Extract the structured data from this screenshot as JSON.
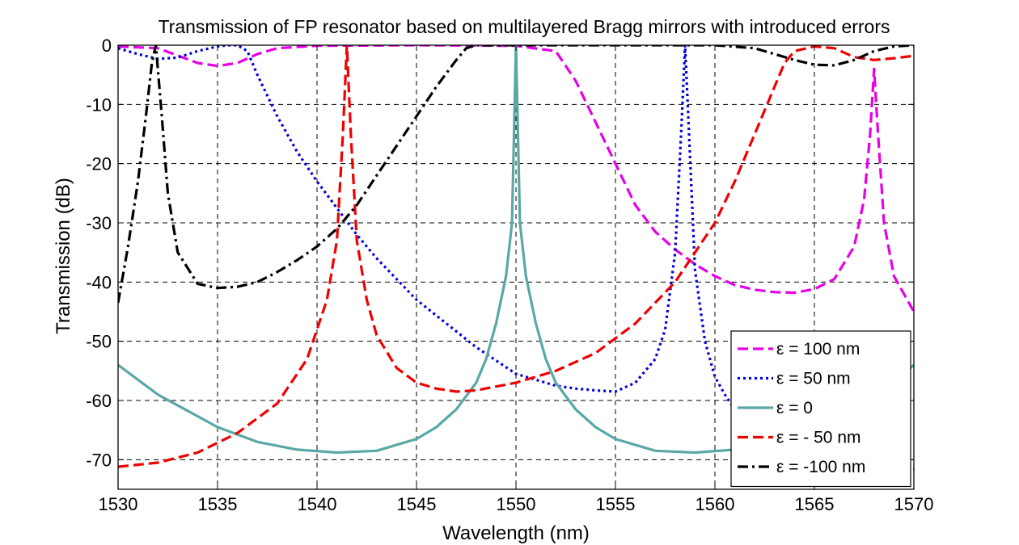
{
  "chart_data": {
    "type": "line",
    "title": "Transmission of FP resonator based on multilayered Bragg mirrors with introduced errors",
    "xlabel": "Wavelength (nm)",
    "ylabel": "Transmission (dB)",
    "xlim": [
      1530,
      1570
    ],
    "ylim": [
      -75,
      0
    ],
    "xticks": [
      1530,
      1535,
      1540,
      1545,
      1550,
      1555,
      1560,
      1565,
      1570
    ],
    "yticks": [
      0,
      -10,
      -20,
      -30,
      -40,
      -50,
      -60,
      -70
    ],
    "grid": true,
    "legend_position": "bottom-right",
    "series": [
      {
        "name": "ε = 100 nm",
        "color": "#e600e6",
        "dash": "dashed",
        "x": [
          1530,
          1532,
          1534,
          1535,
          1536,
          1537,
          1538,
          1540,
          1545,
          1550,
          1552,
          1553,
          1554,
          1555,
          1556,
          1557,
          1558,
          1559,
          1560,
          1561,
          1562,
          1563,
          1564,
          1565,
          1566,
          1567,
          1567.5,
          1567.8,
          1568.0,
          1568.2,
          1568.5,
          1569,
          1570
        ],
        "y": [
          -0.2,
          -0.5,
          -3,
          -3.5,
          -3,
          -1.5,
          -0.5,
          -0.1,
          0,
          -0.1,
          -1,
          -6,
          -13,
          -20,
          -27,
          -31.5,
          -34.5,
          -37,
          -39,
          -40.5,
          -41.3,
          -41.7,
          -41.8,
          -41.2,
          -39.5,
          -34,
          -26,
          -15,
          -4,
          -15,
          -30,
          -39,
          -45
        ]
      },
      {
        "name": "ε = 50 nm",
        "color": "#0000dd",
        "dash": "dotted",
        "x": [
          1530,
          1531,
          1532,
          1533,
          1534,
          1535,
          1535.5,
          1536.0,
          1536.5,
          1537,
          1538,
          1539,
          1540,
          1541,
          1542,
          1543,
          1545,
          1548,
          1550,
          1552,
          1553,
          1554,
          1555,
          1556,
          1557,
          1557.5,
          1558.0,
          1558.3,
          1558.5,
          1558.7,
          1559.0,
          1559.5,
          1560,
          1560.5,
          1561,
          1562,
          1563,
          1564,
          1565,
          1566,
          1567,
          1568,
          1569,
          1570
        ],
        "y": [
          -0.5,
          -1.5,
          -2.3,
          -2.1,
          -1,
          -0.2,
          0,
          0,
          -1,
          -5,
          -12,
          -18,
          -23,
          -27.5,
          -32,
          -36,
          -43,
          -51,
          -55.5,
          -57.5,
          -58,
          -58.3,
          -58.5,
          -57,
          -53,
          -48,
          -35,
          -15,
          0,
          -15,
          -38,
          -50,
          -56,
          -59,
          -61.5,
          -64,
          -66,
          -67.5,
          -68.5,
          -69.5,
          -70.2,
          -70.8,
          -71.2,
          -71.5
        ]
      },
      {
        "name": "ε = 0",
        "color": "#5aa8a5",
        "dash": "solid",
        "x": [
          1530,
          1532,
          1535,
          1537,
          1539,
          1541,
          1543,
          1545,
          1546,
          1547,
          1548,
          1548.5,
          1549.0,
          1549.5,
          1549.8,
          1550.0,
          1550.2,
          1550.5,
          1551.0,
          1551.5,
          1552,
          1553,
          1554,
          1555,
          1557,
          1559,
          1561,
          1563,
          1565,
          1567,
          1569,
          1570
        ],
        "y": [
          -54,
          -59,
          -64.5,
          -67,
          -68.3,
          -68.8,
          -68.5,
          -66.5,
          -64.5,
          -61.5,
          -57,
          -53,
          -47,
          -39,
          -30,
          0,
          -30,
          -39,
          -47,
          -53,
          -57,
          -61.5,
          -64.5,
          -66.5,
          -68.5,
          -68.8,
          -68.3,
          -67,
          -64.5,
          -61.5,
          -57,
          -54
        ]
      },
      {
        "name": "ε = - 50 nm",
        "color": "#ee0000",
        "dash": "dashed",
        "x": [
          1530,
          1532,
          1534,
          1536,
          1538,
          1539.5,
          1540.5,
          1541.0,
          1541.3,
          1541.5,
          1541.7,
          1542.0,
          1542.5,
          1543,
          1544,
          1545,
          1546,
          1547,
          1548,
          1550,
          1552,
          1554,
          1556,
          1558,
          1560,
          1561,
          1562,
          1563,
          1563.5,
          1564,
          1565,
          1566,
          1567,
          1568,
          1569,
          1570
        ],
        "y": [
          -71.2,
          -70.5,
          -68.8,
          -65.5,
          -60.5,
          -53,
          -43,
          -33,
          -15,
          0,
          -15,
          -33,
          -43,
          -49,
          -54.5,
          -57,
          -58,
          -58.5,
          -58.3,
          -57,
          -55,
          -52,
          -47,
          -40,
          -30,
          -23,
          -15,
          -7,
          -3,
          -1,
          -0.2,
          -0.5,
          -2,
          -2.5,
          -2.2,
          -1.8
        ]
      },
      {
        "name": "ε = -100 nm",
        "color": "#000000",
        "dash": "dashdot",
        "x": [
          1530,
          1530.5,
          1531.0,
          1531.4,
          1531.7,
          1531.9,
          1532.2,
          1532.5,
          1533,
          1534,
          1535,
          1536,
          1537,
          1538,
          1539,
          1540,
          1541,
          1542,
          1543,
          1544,
          1545,
          1546,
          1547,
          1547.5,
          1548,
          1550,
          1555,
          1560,
          1562,
          1563,
          1564,
          1565,
          1566,
          1567,
          1568,
          1569,
          1570
        ],
        "y": [
          -43.5,
          -34,
          -23,
          -12,
          -3,
          0,
          -12,
          -25,
          -35,
          -40.3,
          -41,
          -40.8,
          -40,
          -38.3,
          -36.3,
          -34,
          -31,
          -27,
          -22,
          -17,
          -12,
          -7,
          -2.5,
          -0.5,
          0,
          0,
          0,
          0,
          -0.5,
          -1.5,
          -2.5,
          -3.3,
          -3.4,
          -2.5,
          -1,
          -0.2,
          0
        ]
      }
    ]
  }
}
